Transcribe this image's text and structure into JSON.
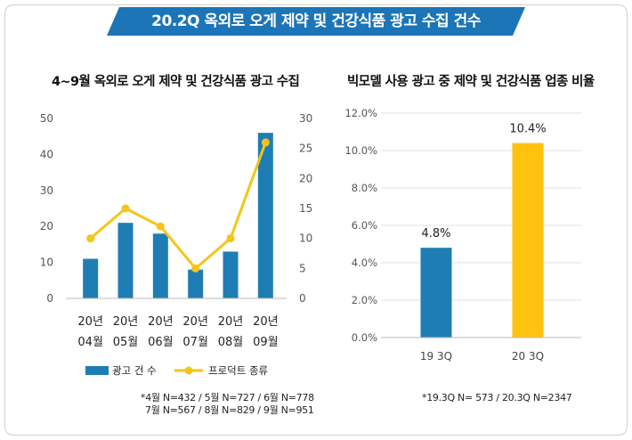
{
  "header": {
    "title": "20.2Q 옥외로 오게 제약 및 건강식품 광고 수집 건수"
  },
  "colors": {
    "banner": "#1b75b7",
    "bar_blue": "#1f7db5",
    "line_yellow": "#f5c518",
    "bar_yellow": "#ffc20e"
  },
  "chart_data": [
    {
      "type": "bar",
      "title": "4~9월 옥외로 오게 제약 및 건강식품 광고 수집",
      "categories": [
        [
          "20년",
          "04월"
        ],
        [
          "20년",
          "05월"
        ],
        [
          "20년",
          "06월"
        ],
        [
          "20년",
          "07월"
        ],
        [
          "20년",
          "08월"
        ],
        [
          "20년",
          "09월"
        ]
      ],
      "series": [
        {
          "name": "광고 건 수",
          "type": "bar",
          "axis": "left",
          "color": "#1f7db5",
          "values": [
            11,
            21,
            18,
            8,
            13,
            46
          ]
        },
        {
          "name": "프로덕트 종류",
          "type": "line",
          "axis": "right",
          "color": "#f5c518",
          "values": [
            10,
            15,
            12,
            5,
            10,
            26
          ]
        }
      ],
      "ylim_left": [
        0,
        50
      ],
      "yticks_left": [
        "0",
        "10",
        "20",
        "30",
        "40",
        "50"
      ],
      "ylim_right": [
        0,
        30
      ],
      "yticks_right": [
        "0",
        "5",
        "10",
        "15",
        "20",
        "25",
        "30"
      ],
      "legend": "bottom",
      "note": [
        "*4월 N=432 / 5월 N=727 / 6월 N=778",
        "7월 N=567 / 8월 N=829 / 9월 N=951"
      ]
    },
    {
      "type": "bar",
      "title": "빅모델 사용 광고 중 제약 및 건강식품 업종 비율",
      "categories": [
        "19 3Q",
        "20 3Q"
      ],
      "values": [
        4.8,
        10.4
      ],
      "data_labels": [
        "4.8%",
        "10.4%"
      ],
      "colors": [
        "#1f7db5",
        "#ffc20e"
      ],
      "ylim": [
        0,
        12
      ],
      "yticks": [
        "0.0%",
        "2.0%",
        "4.0%",
        "6.0%",
        "8.0%",
        "10.0%",
        "12.0%"
      ],
      "note": "*19.3Q N= 573 / 20.3Q N=2347"
    }
  ]
}
